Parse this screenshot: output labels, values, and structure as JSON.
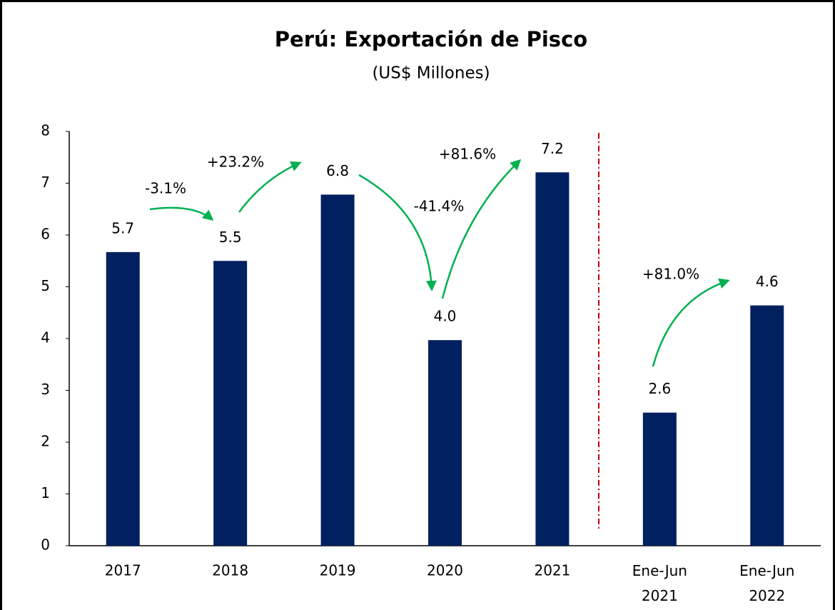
{
  "chart_data": {
    "type": "bar",
    "title": "Perú: Exportación de Pisco",
    "subtitle": "(US$ Millones)",
    "categories": [
      "2017",
      "2018",
      "2019",
      "2020",
      "2021",
      "Ene-Jun 2021",
      "Ene-Jun 2022"
    ],
    "values": [
      5.67,
      5.5,
      6.78,
      3.97,
      7.21,
      2.57,
      4.64
    ],
    "value_labels": [
      "5.7",
      "5.5",
      "6.8",
      "4.0",
      "7.2",
      "2.6",
      "4.6"
    ],
    "color": "#002060",
    "ylim": [
      0,
      8
    ],
    "yticks": [
      0,
      1,
      2,
      3,
      4,
      5,
      6,
      7,
      8
    ],
    "grid": false,
    "annotations": [
      "-3.1%",
      "+23.2%",
      "-41.4%",
      "+81.6%",
      "+81.0%"
    ]
  }
}
